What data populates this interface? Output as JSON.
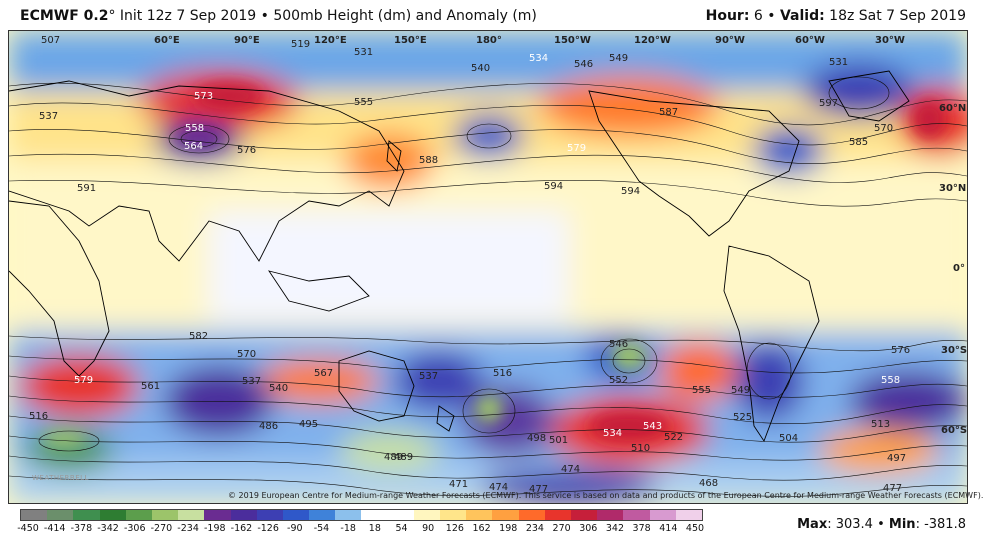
{
  "header": {
    "model": "ECMWF 0.2",
    "degree": "°",
    "init": "Init 12z 7 Sep 2019",
    "sep": "•",
    "product": "500mb Height (dm) and Anomaly (m)",
    "hour_label": "Hour:",
    "hour_value": "6",
    "valid_label": "Valid:",
    "valid_value": "18z Sat 7 Sep 2019"
  },
  "map": {
    "longitude_labels": [
      "60°E",
      "90°E",
      "120°E",
      "150°E",
      "180°",
      "150°W",
      "120°W",
      "90°W",
      "60°W",
      "30°W"
    ],
    "latitude_labels": [
      "60°N",
      "30°N",
      "0°",
      "30°S",
      "60°S"
    ],
    "height_labels": [
      "573",
      "555",
      "558",
      "564",
      "576",
      "591",
      "588",
      "594",
      "594",
      "579",
      "587",
      "585",
      "597",
      "570",
      "540",
      "546",
      "549",
      "531",
      "534",
      "519",
      "507",
      "537",
      "582",
      "570",
      "567",
      "537",
      "540",
      "579",
      "561",
      "495",
      "486",
      "489",
      "471",
      "474",
      "477",
      "474",
      "468",
      "510",
      "543",
      "534",
      "522",
      "525",
      "504",
      "555",
      "549",
      "576",
      "558",
      "513",
      "497",
      "477",
      "501",
      "498",
      "516",
      "546",
      "552",
      "537",
      "531",
      "516",
      "489"
    ],
    "colors": {
      "ocean_fill": "#ffffff",
      "land_outline": "#000000",
      "contour": "#111111"
    }
  },
  "copyright": "© 2019 European Centre for Medium-range Weather Forecasts (ECMWF). This service is based on data and products of the European Centre for Medium-range Weather Forecasts (ECMWF).",
  "watermark": "WEATHERBELL",
  "colorbar": {
    "ticks": [
      "-450",
      "-414",
      "-378",
      "-342",
      "-306",
      "-270",
      "-234",
      "-198",
      "-162",
      "-126",
      "-90",
      "-54",
      "-18",
      "18",
      "54",
      "90",
      "126",
      "162",
      "198",
      "234",
      "270",
      "306",
      "342",
      "378",
      "414",
      "450"
    ],
    "colors": [
      "#808080",
      "#6b8f6b",
      "#3f8f4f",
      "#2e7d32",
      "#5c9e4c",
      "#9cc46a",
      "#c8e0a0",
      "#6a2c91",
      "#4b2d9c",
      "#3d3fb3",
      "#2f58c9",
      "#3f82d9",
      "#8cc0ec",
      "#ffffff",
      "#ffffff",
      "#fff6bf",
      "#ffe58a",
      "#ffc45c",
      "#ffa040",
      "#ff6a2a",
      "#e8342c",
      "#c61f3a",
      "#b02a6a",
      "#c05aa0",
      "#d89ad0",
      "#f0d0ea"
    ]
  },
  "stats": {
    "max_label": "Max",
    "max_value": "303.4",
    "min_label": "Min",
    "min_value": "-381.8"
  }
}
